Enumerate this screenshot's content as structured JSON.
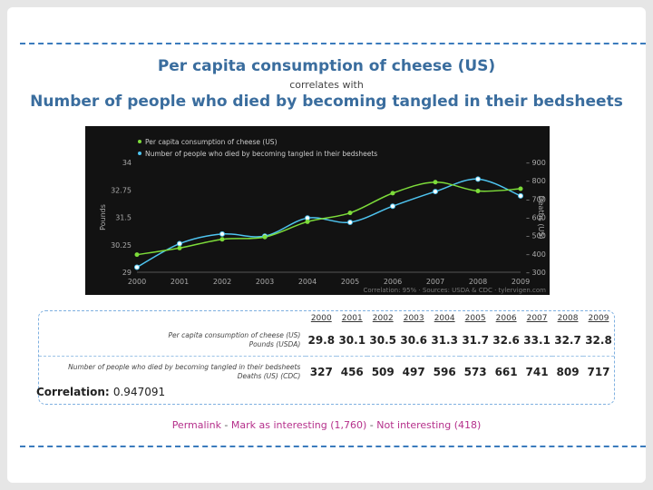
{
  "title_line1": "Per capita consumption of cheese (US)",
  "subtitle": "correlates with",
  "title_line2": "Number of people who died by becoming tangled in their bedsheets",
  "colors": {
    "cheese": "#7ddc3a",
    "deaths": "#4ec4f0",
    "chart_bg": "#121212",
    "title": "#3a6d9e"
  },
  "chart_data": {
    "type": "line",
    "x": [
      2000,
      2001,
      2002,
      2003,
      2004,
      2005,
      2006,
      2007,
      2008,
      2009
    ],
    "categories": [
      "2000",
      "2001",
      "2002",
      "2003",
      "2004",
      "2005",
      "2006",
      "2007",
      "2008",
      "2009"
    ],
    "series": [
      {
        "name": "Per capita consumption of cheese (US)",
        "axis": "left",
        "values": [
          29.8,
          30.1,
          30.5,
          30.6,
          31.3,
          31.7,
          32.6,
          33.1,
          32.7,
          32.8
        ]
      },
      {
        "name": "Number of people who died by becoming tangled in their bedsheets",
        "axis": "right",
        "values": [
          327,
          456,
          509,
          497,
          596,
          573,
          661,
          741,
          809,
          717
        ]
      }
    ],
    "left_axis": {
      "label": "Pounds",
      "range": [
        29,
        34
      ],
      "ticks": [
        "29",
        "30.25",
        "31.5",
        "32.75",
        "34"
      ]
    },
    "right_axis": {
      "label": "Deaths (US)",
      "range": [
        300,
        900
      ],
      "ticks": [
        "300",
        "400",
        "500",
        "600",
        "700",
        "800",
        "900"
      ]
    },
    "footer": "Correlation: 95%  ·  Sources: USDA & CDC  ·  tylervigen.com",
    "legend": "top-left"
  },
  "table": {
    "years": [
      "2000",
      "2001",
      "2002",
      "2003",
      "2004",
      "2005",
      "2006",
      "2007",
      "2008",
      "2009"
    ],
    "row1_label_main": "Per capita consumption of cheese (US)",
    "row1_label_sub": "Pounds (USDA)",
    "row1_values": [
      "29.8",
      "30.1",
      "30.5",
      "30.6",
      "31.3",
      "31.7",
      "32.6",
      "33.1",
      "32.7",
      "32.8"
    ],
    "row2_label_main": "Number of people who died by becoming tangled in their bedsheets",
    "row2_label_sub": "Deaths (US) (CDC)",
    "row2_values": [
      "327",
      "456",
      "509",
      "497",
      "596",
      "573",
      "661",
      "741",
      "809",
      "717"
    ]
  },
  "correlation": {
    "label": "Correlation:",
    "value": "0.947091"
  },
  "links": {
    "permalink": "Permalink",
    "sep1": " - ",
    "mark": "Mark as interesting (1,760)",
    "sep2": " - ",
    "not": "Not interesting (418)"
  }
}
